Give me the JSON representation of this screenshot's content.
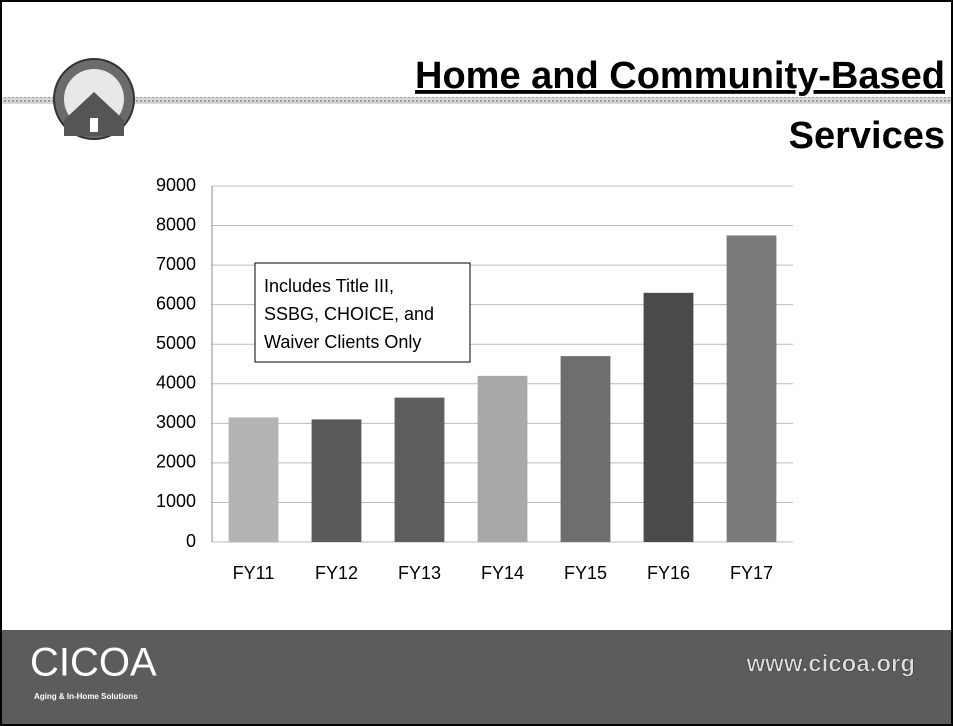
{
  "chart_data": {
    "type": "bar",
    "title": "Home and Community-Based",
    "subtitle": "Services",
    "annotation": [
      "Includes Title III,",
      "SSBG, CHOICE, and",
      "Waiver Clients Only"
    ],
    "categories": [
      "FY11",
      "FY12",
      "FY13",
      "FY14",
      "FY15",
      "FY16",
      "FY17"
    ],
    "values": [
      3150,
      3100,
      3650,
      4200,
      4700,
      6300,
      7750
    ],
    "colors": [
      "#b4b4b4",
      "#5a5a5a",
      "#5e5e5e",
      "#a8a8a8",
      "#6e6e6e",
      "#4a4a4a",
      "#7a7a7a"
    ],
    "ylim": [
      0,
      9000
    ],
    "yticks": [
      0,
      1000,
      2000,
      3000,
      4000,
      5000,
      6000,
      7000,
      8000,
      9000
    ],
    "grid": true
  },
  "footer": {
    "logo": "CICOA",
    "tagline": "Aging & In-Home Solutions",
    "url": "www.cicoa.org"
  }
}
